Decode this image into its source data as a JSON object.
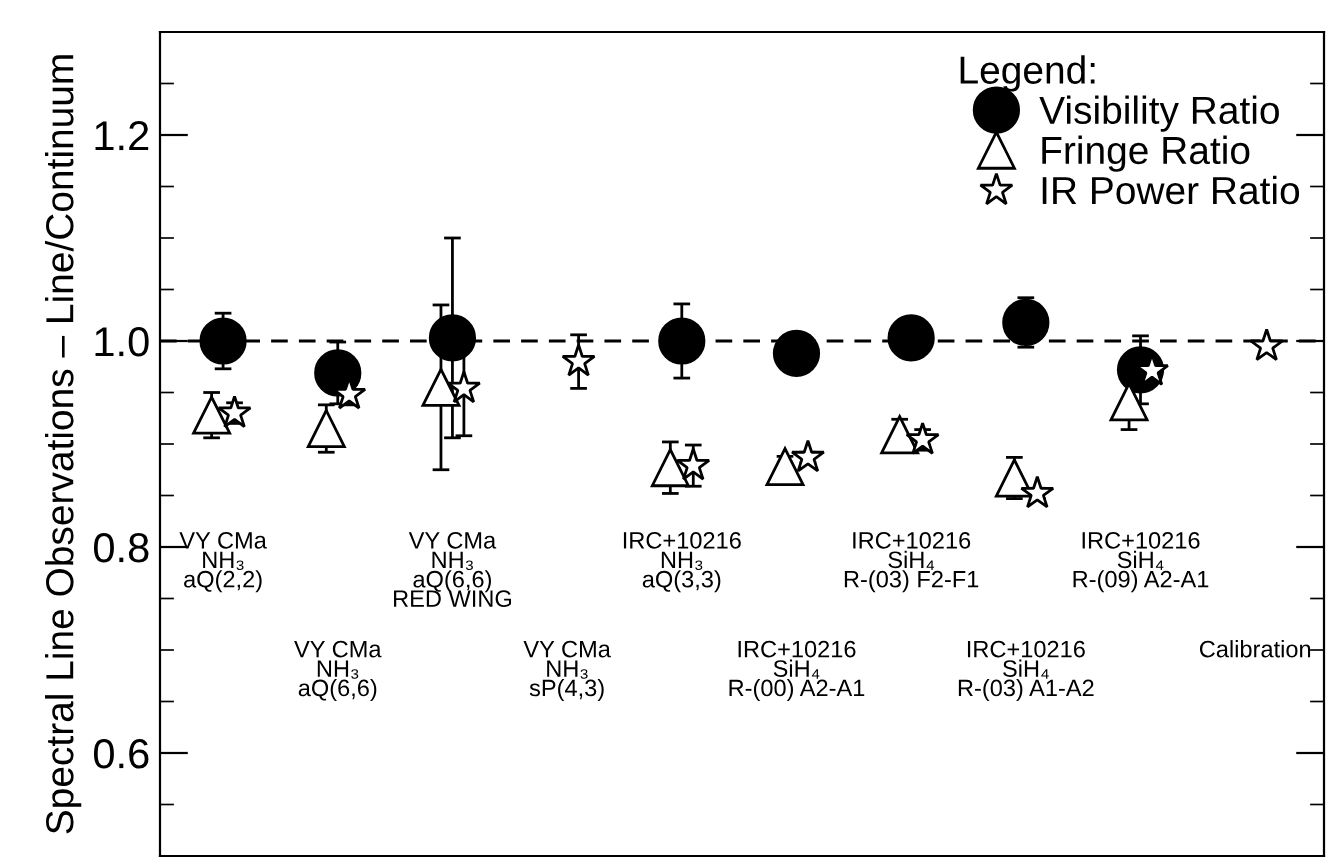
{
  "chart_data": {
    "type": "scatter",
    "ylabel": "Spectral Line Observations – Line/Continuum",
    "legend_title": "Legend:",
    "categories": [
      "VY CMa\nNH₃\naQ(2,2)",
      "VY CMa\nNH₃\naQ(6,6)",
      "VY CMa\nNH₃\naQ(6,6)\nRED WING",
      "VY CMa\nNH₃\nsP(4,3)",
      "IRC+10216\nNH₃\naQ(3,3)",
      "IRC+10216\nSiH₄\nR-(00) A2-A1",
      "IRC+10216\nSiH₄\nR-(03) F2-F1",
      "IRC+10216\nSiH₄\nR-(03) A1-A2",
      "IRC+10216\nSiH₄\nR-(09) A2-A1",
      "Calibration"
    ],
    "series": [
      {
        "name": "Visibility Ratio",
        "color": "#000000",
        "marker": "circle",
        "values": [
          1.0,
          0.969,
          1.003,
          null,
          1.0,
          0.988,
          1.003,
          1.018,
          0.972,
          null
        ],
        "errors": [
          0.027,
          0.03,
          0.097,
          null,
          0.036,
          null,
          0.019,
          0.024,
          0.033,
          null
        ]
      },
      {
        "name": "Fringe Ratio",
        "color": "#000000",
        "marker": "triangle",
        "values": [
          0.928,
          0.915,
          0.955,
          null,
          0.877,
          0.878,
          0.909,
          0.867,
          0.941,
          null
        ],
        "errors": [
          0.022,
          0.023,
          0.08,
          null,
          0.025,
          0.01,
          0.015,
          0.02,
          0.027,
          null
        ]
      },
      {
        "name": "IR Power Ratio",
        "color": "#000000",
        "marker": "star",
        "values": [
          0.93,
          0.948,
          0.954,
          0.98,
          0.879,
          0.887,
          0.904,
          0.852,
          0.971,
          0.995
        ],
        "errors": [
          0.01,
          0.01,
          0.046,
          0.026,
          0.02,
          0.005,
          0.01,
          0.005,
          null,
          null
        ]
      }
    ],
    "ylim": [
      0.5,
      1.3
    ],
    "yticks": [
      {
        "value": 0.6,
        "label": "0.6"
      },
      {
        "value": 0.8,
        "label": "0.8"
      },
      {
        "value": 1.0,
        "label": "1.0"
      },
      {
        "value": 1.2,
        "label": "1.2"
      }
    ],
    "ref_lines": [
      {
        "axis": "y",
        "value": 1.0,
        "label": null,
        "line_style": "dashed",
        "color": "#000000"
      }
    ],
    "tick_labels": "y",
    "grid": false,
    "legend": "top right"
  }
}
